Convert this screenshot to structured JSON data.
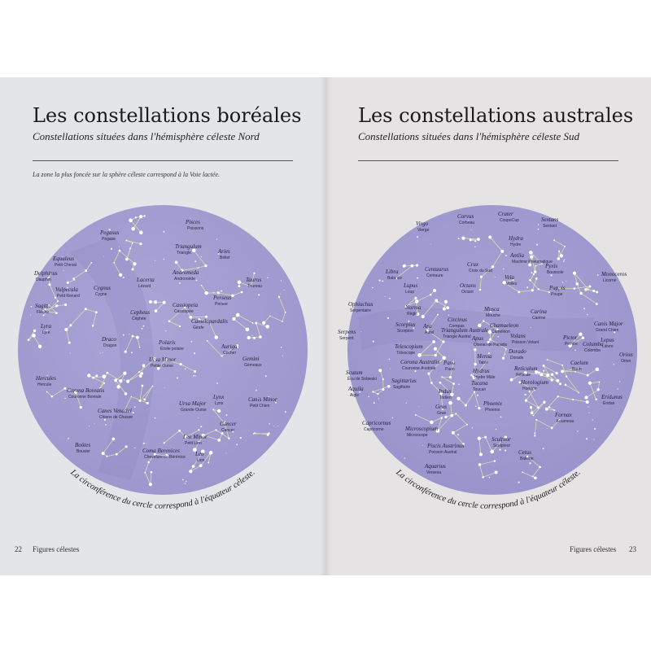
{
  "left_page": {
    "title": "Les constellations boréales",
    "subtitle": "Constellations situées dans l'hémisphère céleste Nord",
    "note": "La zone la plus foncée sur la sphère céleste correspond à la Voie lactée.",
    "arc_caption": "La circonférence du cercle correspond à l'équateur céleste.",
    "page_number": "22",
    "running_title": "Figures célestes",
    "constellations": [
      {
        "latin": "Pegasus",
        "french": "Pégase"
      },
      {
        "latin": "Pisces",
        "french": "Poissons"
      },
      {
        "latin": "Triangulum",
        "french": "Triangle"
      },
      {
        "latin": "Aries",
        "french": "Bélier"
      },
      {
        "latin": "Equuleus",
        "french": "Petit Cheval"
      },
      {
        "latin": "Delphinus",
        "french": "Dauphin"
      },
      {
        "latin": "Vulpecula",
        "french": "Petit Renard"
      },
      {
        "latin": "Cygnus",
        "french": "Cygne"
      },
      {
        "latin": "Lacerta",
        "french": "Lézard"
      },
      {
        "latin": "Andromeda",
        "french": "Andromède"
      },
      {
        "latin": "Taurus",
        "french": "Taureau"
      },
      {
        "latin": "Sagitta",
        "french": "Flèche"
      },
      {
        "latin": "Cassiopeia",
        "french": "Cassiopée"
      },
      {
        "latin": "Perseus",
        "french": "Persée"
      },
      {
        "latin": "Lyra",
        "french": "Lyre"
      },
      {
        "latin": "Cepheus",
        "french": "Céphée"
      },
      {
        "latin": "Camelopardalis",
        "french": "Girafe"
      },
      {
        "latin": "Draco",
        "french": "Dragon"
      },
      {
        "latin": "Polaris",
        "french": "Étoile polaire"
      },
      {
        "latin": "Ursa Minor",
        "french": "Petite Ourse"
      },
      {
        "latin": "Auriga",
        "french": "Cocher"
      },
      {
        "latin": "Gemini",
        "french": "Gémeaux"
      },
      {
        "latin": "Hercules",
        "french": "Hercule"
      },
      {
        "latin": "Corona Borealis",
        "french": "Couronne Boréale"
      },
      {
        "latin": "Canes Venatici",
        "french": "Chiens de Chasse"
      },
      {
        "latin": "Ursa Major",
        "french": "Grande Ourse"
      },
      {
        "latin": "Lynx",
        "french": "Lynx"
      },
      {
        "latin": "Canis Minor",
        "french": "Petit Chien"
      },
      {
        "latin": "Cancer",
        "french": "Cancer"
      },
      {
        "latin": "Leo Minor",
        "french": "Petit Lion"
      },
      {
        "latin": "Boötes",
        "french": "Bouvier"
      },
      {
        "latin": "Coma Berenices",
        "french": "Chevelure de Bérénice"
      },
      {
        "latin": "Leo",
        "french": "Lion"
      }
    ]
  },
  "right_page": {
    "title": "Les constellations australes",
    "subtitle": "Constellations situées dans l'hémisphère céleste Sud",
    "arc_caption": "La circonférence du cercle correspond à l'équateur céleste.",
    "page_number": "23",
    "running_title": "Figures célestes",
    "constellations": [
      {
        "latin": "Corvus",
        "french": "Corbeau"
      },
      {
        "latin": "Crater",
        "french": "CoupeCup"
      },
      {
        "latin": "Sextans",
        "french": "Sextant"
      },
      {
        "latin": "Virgo",
        "french": "Vierge"
      },
      {
        "latin": "Hydra",
        "french": "Hydre"
      },
      {
        "latin": "Antlia",
        "french": "Machine Pneumatique"
      },
      {
        "latin": "Centaurus",
        "french": "Centaure"
      },
      {
        "latin": "Pyxis",
        "french": "Boussole"
      },
      {
        "latin": "Libra",
        "french": "Balance"
      },
      {
        "latin": "Crux",
        "french": "Croix du Sud"
      },
      {
        "latin": "Vela",
        "french": "Voiles"
      },
      {
        "latin": "Monoceros",
        "french": "Licorne"
      },
      {
        "latin": "Lupus",
        "french": "Loup"
      },
      {
        "latin": "Octans",
        "french": "Octant"
      },
      {
        "latin": "Puppis",
        "french": "Poupe"
      },
      {
        "latin": "Ophiuchus",
        "french": "Serpentaire"
      },
      {
        "latin": "Norma",
        "french": "Règle"
      },
      {
        "latin": "Musca",
        "french": "Mouche"
      },
      {
        "latin": "Carina",
        "french": "Carène"
      },
      {
        "latin": "Scorpius",
        "french": "Scorpion"
      },
      {
        "latin": "Ara",
        "french": "Autel"
      },
      {
        "latin": "Circinus",
        "french": "Compas"
      },
      {
        "latin": "Chamaeleon",
        "french": "Caméléon"
      },
      {
        "latin": "Canis Major",
        "french": "Grand Chien"
      },
      {
        "latin": "Serpens",
        "french": "Serpent"
      },
      {
        "latin": "Triangulum Australe",
        "french": "Triangle Austral"
      },
      {
        "latin": "Apus",
        "french": "Oiseau de Paradis"
      },
      {
        "latin": "Volans",
        "french": "Poisson Volant"
      },
      {
        "latin": "Pictor",
        "french": "Peintre"
      },
      {
        "latin": "Columba",
        "french": "Colombe"
      },
      {
        "latin": "Lepus",
        "french": "Lièvre"
      },
      {
        "latin": "Telescopium",
        "french": "Télescope"
      },
      {
        "latin": "Mensa",
        "french": "Table"
      },
      {
        "latin": "Dorado",
        "french": "Dorade"
      },
      {
        "latin": "Orion",
        "french": "Orion"
      },
      {
        "latin": "Scutum",
        "french": "Écu de Sobieski"
      },
      {
        "latin": "Corona Australis",
        "french": "Couronne Australe"
      },
      {
        "latin": "Pavo",
        "french": "Paon"
      },
      {
        "latin": "Hydrus",
        "french": "Hydre Mâle"
      },
      {
        "latin": "Reticulum",
        "french": "Réticule"
      },
      {
        "latin": "Caelum",
        "french": "Burin"
      },
      {
        "latin": "Sagittarius",
        "french": "Sagittaire"
      },
      {
        "latin": "Tucana",
        "french": "Toucan"
      },
      {
        "latin": "Horologium",
        "french": "Horloge"
      },
      {
        "latin": "Aquila",
        "french": "Aigle"
      },
      {
        "latin": "Indus",
        "french": "Indien"
      },
      {
        "latin": "Eridanus",
        "french": "Éridan"
      },
      {
        "latin": "Phoenix",
        "french": "Phoenix"
      },
      {
        "latin": "Grus",
        "french": "Grue"
      },
      {
        "latin": "Fornax",
        "french": "Fourneau"
      },
      {
        "latin": "Capricornus",
        "french": "Capricorne"
      },
      {
        "latin": "Microscopium",
        "french": "Microscope"
      },
      {
        "latin": "Sculptor",
        "french": "Sculpteur"
      },
      {
        "latin": "Piscis Austrinus",
        "french": "Poisson Austral"
      },
      {
        "latin": "Cetus",
        "french": "Baleine"
      },
      {
        "latin": "Aquarius",
        "french": "Verseau"
      }
    ]
  },
  "colors": {
    "left_page_bg": "#e3e6e8",
    "right_page_bg": "#e6e3e5",
    "sky_light": "#aaa5d6",
    "sky_dark": "#8f89c4",
    "constellation_line": "#e3dfa8",
    "star": "#ffffff"
  }
}
